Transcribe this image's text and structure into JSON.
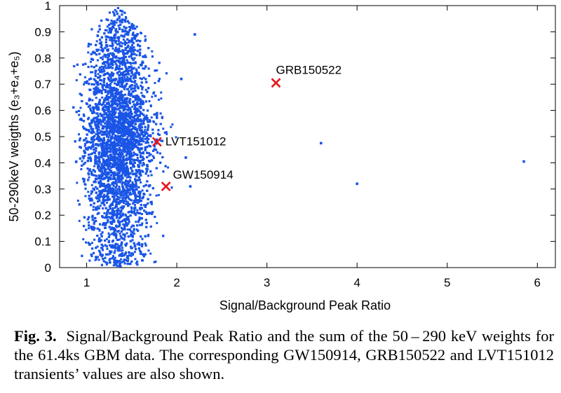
{
  "chart_data": {
    "type": "scatter",
    "xlabel": "Signal/Background Peak Ratio",
    "ylabel": "50-290keV weigths (e₃+e₄+e₅)",
    "xlim": [
      0.7,
      6.2
    ],
    "ylim": [
      0,
      1
    ],
    "x_ticks": [
      1,
      2,
      3,
      4,
      5,
      6
    ],
    "y_ticks": [
      0,
      0.1,
      0.2,
      0.3,
      0.4,
      0.5,
      0.6,
      0.7,
      0.8,
      0.9,
      1
    ],
    "grid": false,
    "background_points": {
      "color": "#1a55e6",
      "count": 9000,
      "center_x": 1.35,
      "spread_x": 0.18,
      "x_range": [
        0.85,
        2.0
      ]
    },
    "outliers": [
      {
        "x": 2.2,
        "y": 0.89
      },
      {
        "x": 2.05,
        "y": 0.72
      },
      {
        "x": 2.1,
        "y": 0.42
      },
      {
        "x": 2.15,
        "y": 0.31
      },
      {
        "x": 3.6,
        "y": 0.475
      },
      {
        "x": 4.0,
        "y": 0.32
      },
      {
        "x": 5.85,
        "y": 0.405
      }
    ],
    "highlighted": [
      {
        "label": "GRB150522",
        "x": 3.1,
        "y": 0.705
      },
      {
        "label": "LVT151012",
        "x": 1.78,
        "y": 0.48
      },
      {
        "label": "GW150914",
        "x": 1.88,
        "y": 0.31
      }
    ],
    "highlight_color": "#e8141a"
  },
  "caption": {
    "label": "Fig. 3.",
    "text": "Signal/Background Peak Ratio and the sum of the 50 – 290 keV weights for the 61.4ks GBM data. The corresponding GW150914, GRB150522 and LVT151012 transients’ values are also shown."
  }
}
